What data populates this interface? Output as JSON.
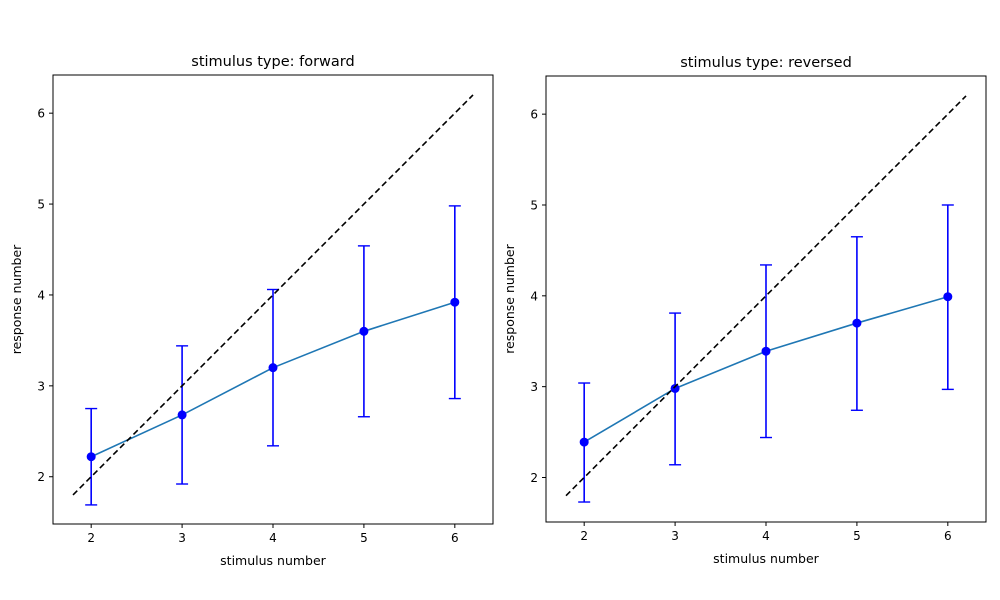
{
  "chart_data": [
    {
      "type": "line",
      "title": "stimulus type: forward",
      "xlabel": "stimulus number",
      "ylabel": "response number",
      "xlim": [
        1.58,
        6.42
      ],
      "ylim": [
        1.48,
        6.42
      ],
      "xticks": [
        2,
        3,
        4,
        5,
        6
      ],
      "yticks": [
        2,
        3,
        4,
        5,
        6
      ],
      "grid": false,
      "series": [
        {
          "kind": "errorbar-line",
          "x": [
            2,
            3,
            4,
            5,
            6
          ],
          "values": [
            2.22,
            2.68,
            3.2,
            3.6,
            3.92
          ],
          "err_low": [
            1.69,
            1.92,
            2.34,
            2.66,
            2.86
          ],
          "err_high": [
            2.75,
            3.44,
            4.06,
            4.54,
            4.98
          ],
          "line_color": "#1f77b4",
          "marker_color": "#0000ff"
        },
        {
          "kind": "reference-line",
          "x": [
            1.8,
            6.2
          ],
          "values": [
            1.8,
            6.2
          ],
          "color": "#000000",
          "style": "dashed"
        }
      ]
    },
    {
      "type": "line",
      "title": "stimulus type: reversed",
      "xlabel": "stimulus number",
      "ylabel": "response number",
      "xlim": [
        1.58,
        6.42
      ],
      "ylim": [
        1.51,
        6.42
      ],
      "xticks": [
        2,
        3,
        4,
        5,
        6
      ],
      "yticks": [
        2,
        3,
        4,
        5,
        6
      ],
      "grid": false,
      "series": [
        {
          "kind": "errorbar-line",
          "x": [
            2,
            3,
            4,
            5,
            6
          ],
          "values": [
            2.39,
            2.98,
            3.39,
            3.7,
            3.99
          ],
          "err_low": [
            1.73,
            2.14,
            2.44,
            2.74,
            2.97
          ],
          "err_high": [
            3.04,
            3.81,
            4.34,
            4.65,
            5.0
          ],
          "line_color": "#1f77b4",
          "marker_color": "#0000ff"
        },
        {
          "kind": "reference-line",
          "x": [
            1.8,
            6.2
          ],
          "values": [
            1.8,
            6.2
          ],
          "color": "#000000",
          "style": "dashed"
        }
      ]
    }
  ]
}
